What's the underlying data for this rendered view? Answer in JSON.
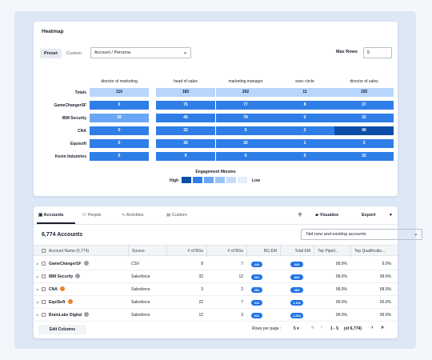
{
  "heatmap": {
    "title": "Heatmap",
    "toggle_preset": "Preset",
    "toggle_custom": "Custom",
    "dimension_select": "Account / Persona",
    "max_rows_label": "Max Rows",
    "max_rows_value": "5",
    "columns": [
      "director of marketing",
      "head of sales",
      "marketing manager",
      "exec circle",
      "director of sales"
    ],
    "rows": [
      {
        "label": "Totals",
        "values": [
          "110",
          "182",
          "202",
          "11",
          "155"
        ]
      },
      {
        "label": "GameChangerSF",
        "values": [
          "0",
          "75",
          "77",
          "8",
          "37"
        ]
      },
      {
        "label": "IBM Security",
        "values": [
          "29",
          "45",
          "78",
          "0",
          "32"
        ]
      },
      {
        "label": "CNA",
        "values": [
          "0",
          "32",
          "0",
          "2",
          "90"
        ]
      },
      {
        "label": "Equisoft",
        "values": [
          "0",
          "30",
          "32",
          "1",
          "3"
        ]
      },
      {
        "label": "Kenin Industries",
        "values": [
          "0",
          "9",
          "0",
          "0",
          "32"
        ]
      }
    ],
    "cell_colors": [
      [
        "#b8d6fb",
        "#b8d6fb",
        "#b8d6fb",
        "#b8d6fb",
        "#b8d6fb"
      ],
      [
        "#2f7ee8",
        "#2f7ee8",
        "#2f7ee8",
        "#2f7ee8",
        "#2f7ee8"
      ],
      [
        "#6aa6f3",
        "#2f7ee8",
        "#2f7ee8",
        "#2f7ee8",
        "#2f7ee8"
      ],
      [
        "#2f7ee8",
        "#2f7ee8",
        "#2f7ee8",
        "#2f7ee8",
        "#0b4ea8"
      ],
      [
        "#2f7ee8",
        "#2f7ee8",
        "#2f7ee8",
        "#2f7ee8",
        "#2f7ee8"
      ],
      [
        "#2f7ee8",
        "#2f7ee8",
        "#2f7ee8",
        "#2f7ee8",
        "#2f7ee8"
      ]
    ],
    "legend_title": "Engagement Minutes",
    "legend_high": "High",
    "legend_low": "Low",
    "legend_colors": [
      "#0b4ea8",
      "#2f7ee8",
      "#6aa6f3",
      "#9cc5f7",
      "#c7defb",
      "#e4effd"
    ]
  },
  "accounts": {
    "tabs": [
      "Accounts",
      "People",
      "Activities",
      "Custom"
    ],
    "tab_icons": [
      "building-icon",
      "people-icon",
      "activity-icon",
      "custom-icon"
    ],
    "search_icon": "⚲",
    "visualize_label": "Visualize",
    "export_label": "Export",
    "count_label": "6,774 Accounts",
    "filter_value": "Net new and existing accounts",
    "headers": [
      "Account Name (6,774)",
      "Source",
      "# of BGs",
      "# of BGs",
      "BG EM",
      "Total EM",
      "Top Pipeli...",
      "Top Qualificatio..."
    ],
    "rows": [
      {
        "name": "GameChangerSF",
        "dot": "#9aa0a8",
        "source": "CSV",
        "bgs1": "8",
        "bgs2": "7",
        "bgem": "444",
        "totalem": "843",
        "pipe": "99.0%",
        "qual": "6.0%"
      },
      {
        "name": "IBM Security",
        "dot": "#9aa0a8",
        "source": "Salesforce",
        "bgs1": "32",
        "bgs2": "12",
        "bgem": "461",
        "totalem": "833",
        "pipe": "99.0%",
        "qual": "99.0%"
      },
      {
        "name": "CNA",
        "dot": "#e8852a",
        "source": "Salesforce",
        "bgs1": "3",
        "bgs2": "2",
        "bgem": "251",
        "totalem": "365",
        "pipe": "99.0%",
        "qual": "68.0%"
      },
      {
        "name": "EquiSoft",
        "dot": "#e8852a",
        "source": "Salesforce",
        "bgs1": "22",
        "bgs2": "7",
        "bgem": "411",
        "totalem": "1,151",
        "pipe": "99.0%",
        "qual": "60.0%"
      },
      {
        "name": "BrainLabs Digital",
        "dot": "#9aa0a8",
        "source": "Salesforce",
        "bgs1": "12",
        "bgs2": "3",
        "bgem": "631",
        "totalem": "1,552",
        "pipe": "99.0%",
        "qual": "99.0%"
      }
    ],
    "edit_columns": "Edit Columns",
    "rows_per_page_label": "Rows per page :",
    "rows_per_page_value": "5 ▾",
    "range_label": "1 - 5",
    "of_label": "(of 6,774)"
  }
}
